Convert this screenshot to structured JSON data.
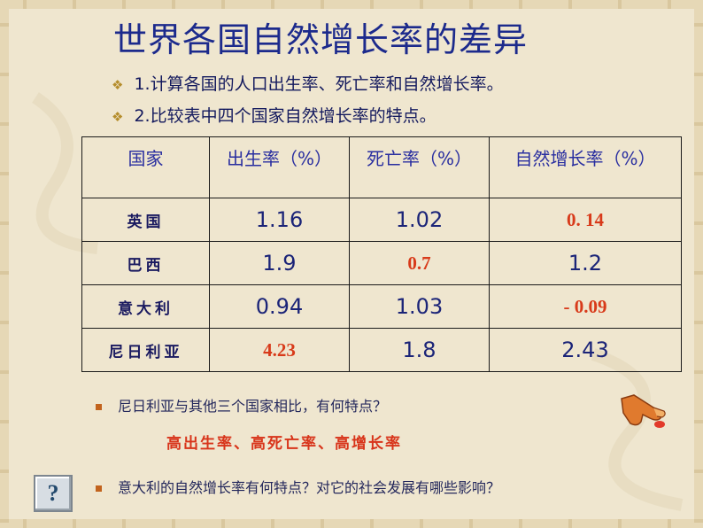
{
  "slide": {
    "title": "世界各国自然增长率的差异",
    "bullets": [
      "1.计算各国的人口出生率、死亡率和自然增长率。",
      "2.比较表中四个国家自然增长率的特点。"
    ],
    "bullet_marker": "❖",
    "table": {
      "headers": [
        "国家",
        "出生率（%）",
        "死亡率（%）",
        "自然增长率（%）"
      ],
      "rows": [
        [
          "英国",
          "1.16",
          "1.02",
          "0. 14"
        ],
        [
          "巴西",
          "1.9",
          "0.7",
          "1.2"
        ],
        [
          "意大利",
          "0.94",
          "1.03",
          "- 0.09"
        ],
        [
          "尼日利亚",
          "4.23",
          "1.8",
          "2.43"
        ]
      ]
    },
    "question1": "尼日利亚与其他三个国家相比，有何特点？",
    "answer1": "高出生率、高死亡率、高增长率",
    "question2": "意大利的自然增长率有何特点？对它的社会发展有哪些影响？",
    "help_button_label": "?",
    "icons": {
      "hand": "pointing-hand-icon",
      "help": "question-icon"
    },
    "colors": {
      "title": "#1c2a8c",
      "highlight": "#d83a1a",
      "background": "#efe6cf"
    }
  }
}
